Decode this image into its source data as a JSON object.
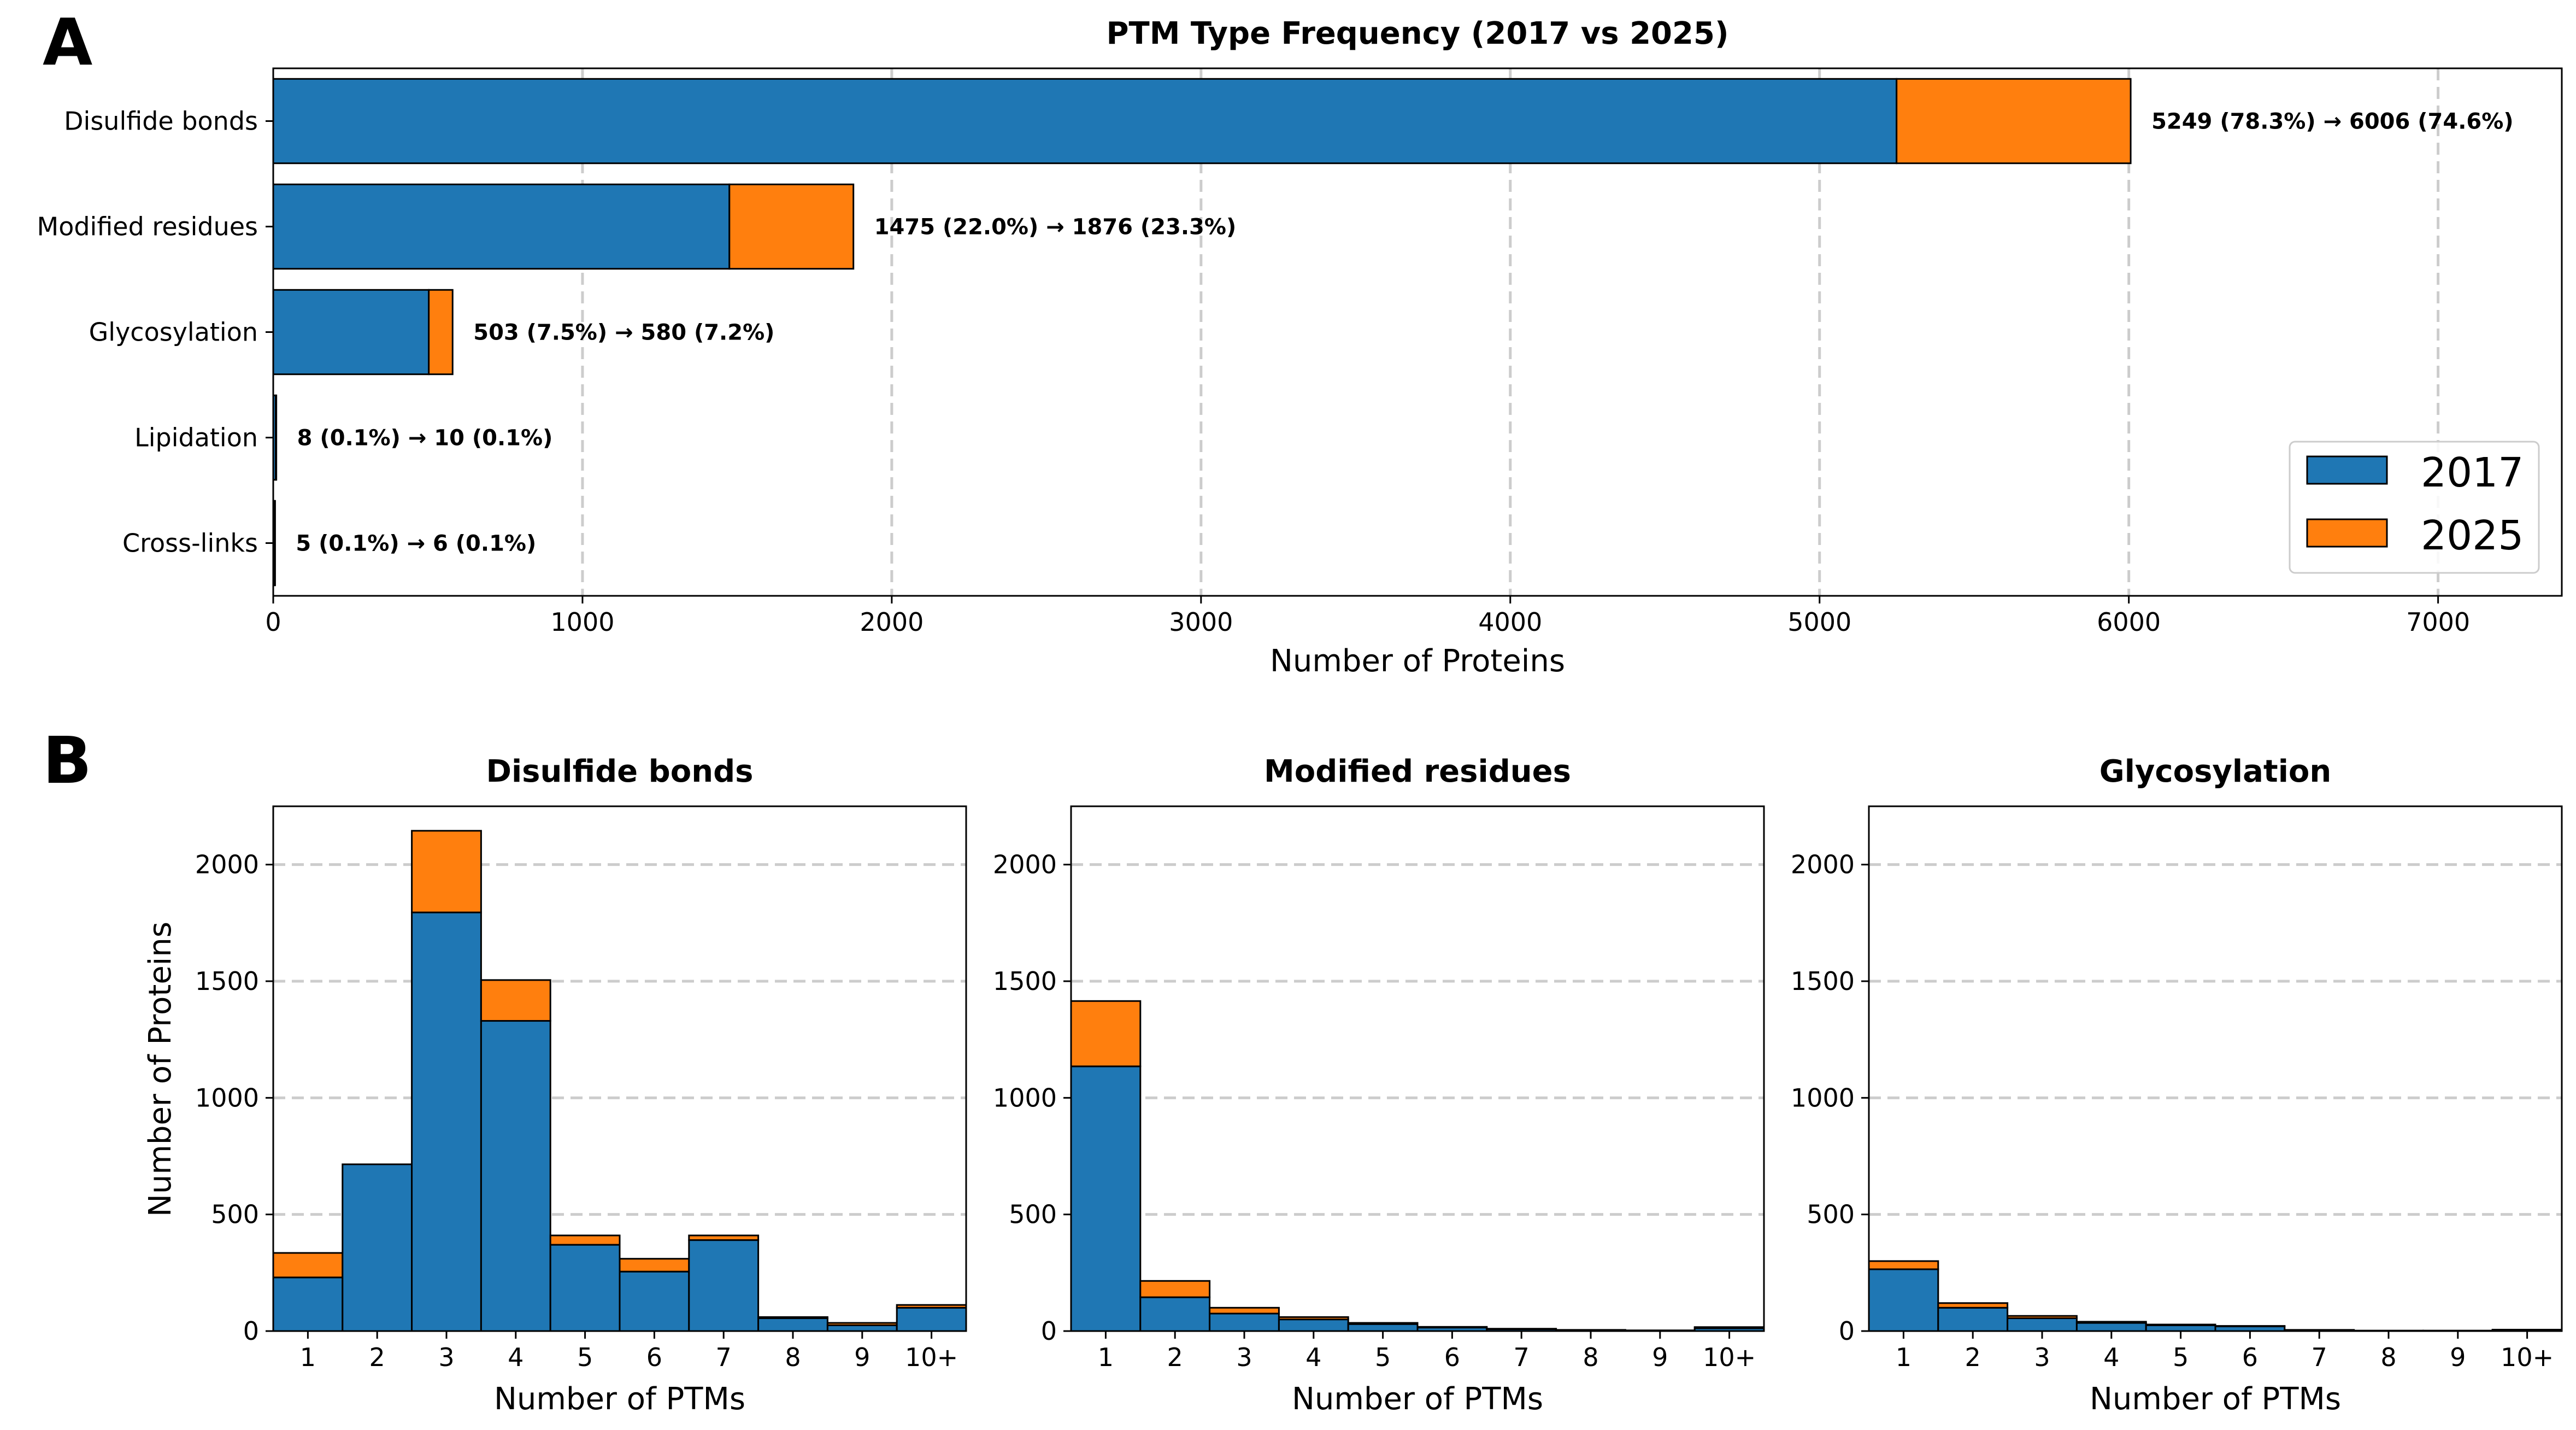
{
  "panel_labels": {
    "a": "A",
    "b": "B"
  },
  "colors": {
    "y2017": "#1f77b4",
    "y2025": "#ff7f0e"
  },
  "chart_data": [
    {
      "type": "bar",
      "orientation": "horizontal",
      "stacked": true,
      "title": "PTM Type Frequency (2017 vs 2025)",
      "xlabel": "Number of Proteins",
      "ylabel": "",
      "xlim": [
        0,
        7400
      ],
      "xticks": [
        0,
        1000,
        2000,
        3000,
        4000,
        5000,
        6000,
        7000
      ],
      "grid": "x",
      "legend_position": "lower-right",
      "categories": [
        "Disulfide bonds",
        "Modified residues",
        "Glycosylation",
        "Lipidation",
        "Cross-links"
      ],
      "series": [
        {
          "name": "2017",
          "values": [
            5249,
            1475,
            503,
            8,
            5
          ]
        },
        {
          "name": "2025",
          "values": [
            757,
            401,
            77,
            2,
            1
          ]
        }
      ],
      "totals_2025": [
        6006,
        1876,
        580,
        10,
        6
      ],
      "annotations": [
        "5249 (78.3%) → 6006 (74.6%)",
        "1475 (22.0%) → 1876 (23.3%)",
        "503 (7.5%) → 580 (7.2%)",
        "8 (0.1%) → 10 (0.1%)",
        "5 (0.1%) → 6 (0.1%)"
      ]
    },
    {
      "type": "bar",
      "stacked": true,
      "title": "Disulfide bonds",
      "xlabel": "Number of PTMs",
      "ylabel": "Number of Proteins",
      "ylim": [
        0,
        2250
      ],
      "yticks": [
        0,
        500,
        1000,
        1500,
        2000
      ],
      "grid": "y",
      "categories": [
        "1",
        "2",
        "3",
        "4",
        "5",
        "6",
        "7",
        "8",
        "9",
        "10+"
      ],
      "series": [
        {
          "name": "2017",
          "values": [
            230,
            715,
            1795,
            1330,
            370,
            255,
            390,
            55,
            25,
            100
          ]
        },
        {
          "name": "2025",
          "values": [
            105,
            0,
            350,
            175,
            40,
            55,
            20,
            5,
            10,
            12
          ]
        }
      ]
    },
    {
      "type": "bar",
      "stacked": true,
      "title": "Modified residues",
      "xlabel": "Number of PTMs",
      "ylabel": "",
      "ylim": [
        0,
        2250
      ],
      "yticks": [
        0,
        500,
        1000,
        1500,
        2000
      ],
      "grid": "y",
      "categories": [
        "1",
        "2",
        "3",
        "4",
        "5",
        "6",
        "7",
        "8",
        "9",
        "10+"
      ],
      "series": [
        {
          "name": "2017",
          "values": [
            1135,
            145,
            75,
            50,
            30,
            15,
            8,
            4,
            3,
            12
          ]
        },
        {
          "name": "2025",
          "values": [
            280,
            70,
            25,
            10,
            5,
            3,
            2,
            1,
            0,
            5
          ]
        }
      ]
    },
    {
      "type": "bar",
      "stacked": true,
      "title": "Glycosylation",
      "xlabel": "Number of PTMs",
      "ylabel": "",
      "ylim": [
        0,
        2250
      ],
      "yticks": [
        0,
        500,
        1000,
        1500,
        2000
      ],
      "grid": "y",
      "categories": [
        "1",
        "2",
        "3",
        "4",
        "5",
        "6",
        "7",
        "8",
        "9",
        "10+"
      ],
      "series": [
        {
          "name": "2017",
          "values": [
            265,
            100,
            55,
            35,
            25,
            20,
            4,
            2,
            2,
            5
          ]
        },
        {
          "name": "2025",
          "values": [
            35,
            20,
            10,
            5,
            3,
            2,
            1,
            0,
            0,
            1
          ]
        }
      ]
    }
  ]
}
